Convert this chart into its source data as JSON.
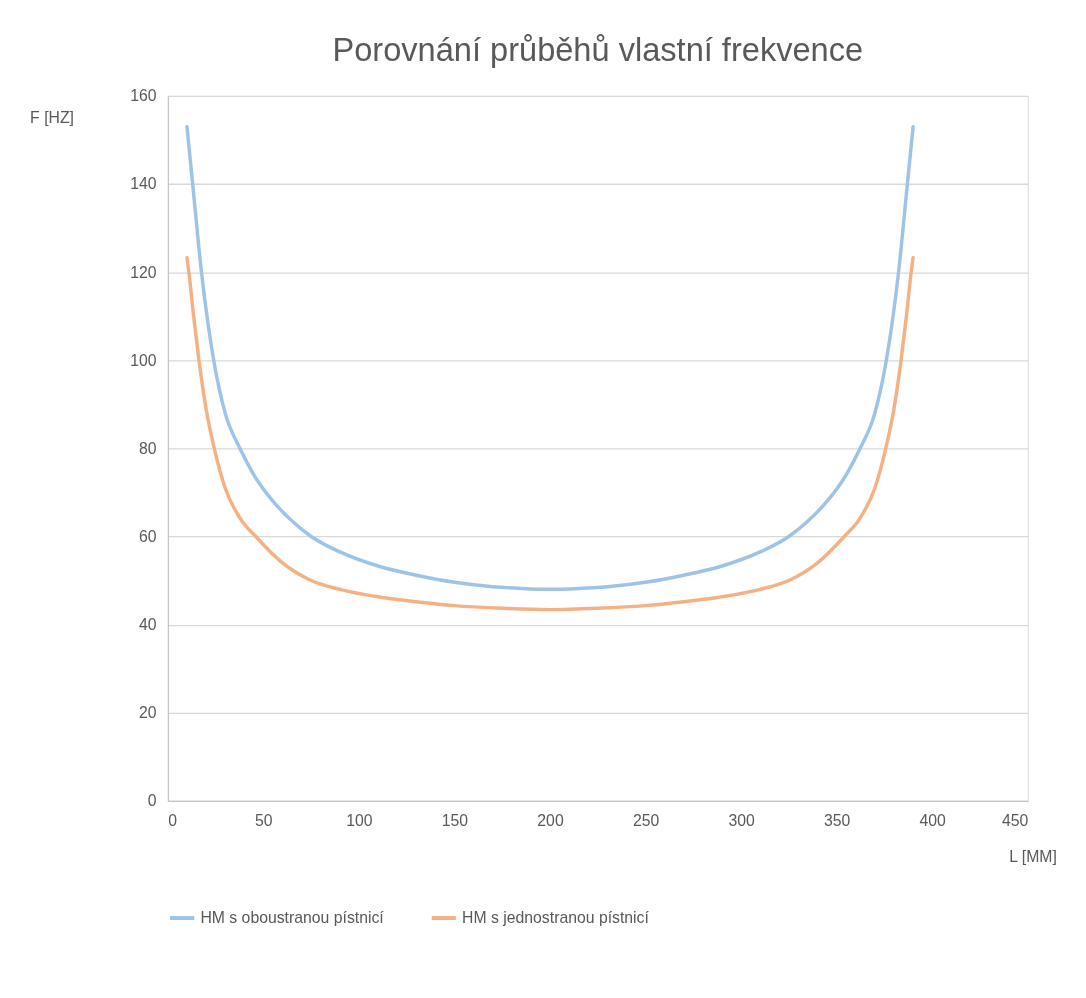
{
  "chart_data": {
    "type": "line",
    "title": "Porovnání průběhů vlastní frekvence",
    "xlabel": "L [MM]",
    "ylabel": "F [HZ]",
    "xlim": [
      0,
      450
    ],
    "xticks": [
      0,
      50,
      100,
      150,
      200,
      250,
      300,
      350,
      400,
      450
    ],
    "ylim": [
      0,
      160
    ],
    "yticks": [
      0,
      20,
      40,
      60,
      80,
      100,
      120,
      140,
      160
    ],
    "grid": "y",
    "legend": "bottom",
    "marker": "none",
    "line_style": "solid",
    "series": [
      {
        "name": "HM s oboustranou pístnicí",
        "color": "#9dc3e6",
        "x": [
          10,
          13,
          17.6,
          24,
          30,
          37.7,
          45,
          55,
          65,
          75,
          90,
          110,
          130,
          150,
          170,
          185,
          200,
          215,
          230,
          250,
          270,
          290,
          310,
          325,
          335,
          345,
          355,
          362.3,
          370,
          376,
          382.4,
          387,
          390
        ],
        "values": [
          153,
          140,
          120,
          100,
          88,
          80,
          74,
          68,
          63.5,
          60,
          56.5,
          53.3,
          51.2,
          49.6,
          48.6,
          48.2,
          48,
          48.2,
          48.6,
          49.6,
          51.2,
          53.3,
          56.5,
          60,
          63.5,
          68,
          74,
          80,
          88,
          100,
          120,
          140,
          153
        ]
      },
      {
        "name": "HM s jednostranou pístnicí",
        "color": "#f4b183",
        "x": [
          10,
          11,
          13.5,
          16.3,
          20,
          24.3,
          30,
          38,
          46,
          60,
          75,
          90,
          110,
          130,
          150,
          175,
          200,
          225,
          250,
          270,
          290,
          310,
          325,
          340,
          354,
          362,
          370,
          375.7,
          380,
          383.7,
          386.5,
          389,
          390
        ],
        "values": [
          123.3,
          120,
          110,
          100,
          89,
          80,
          71,
          64,
          60,
          54,
          50,
          48,
          46.3,
          45.2,
          44.3,
          43.7,
          43.4,
          43.7,
          44.3,
          45.2,
          46.3,
          48,
          50,
          54,
          60,
          64,
          71,
          80,
          89,
          100,
          110,
          120,
          123.3
        ]
      }
    ]
  }
}
